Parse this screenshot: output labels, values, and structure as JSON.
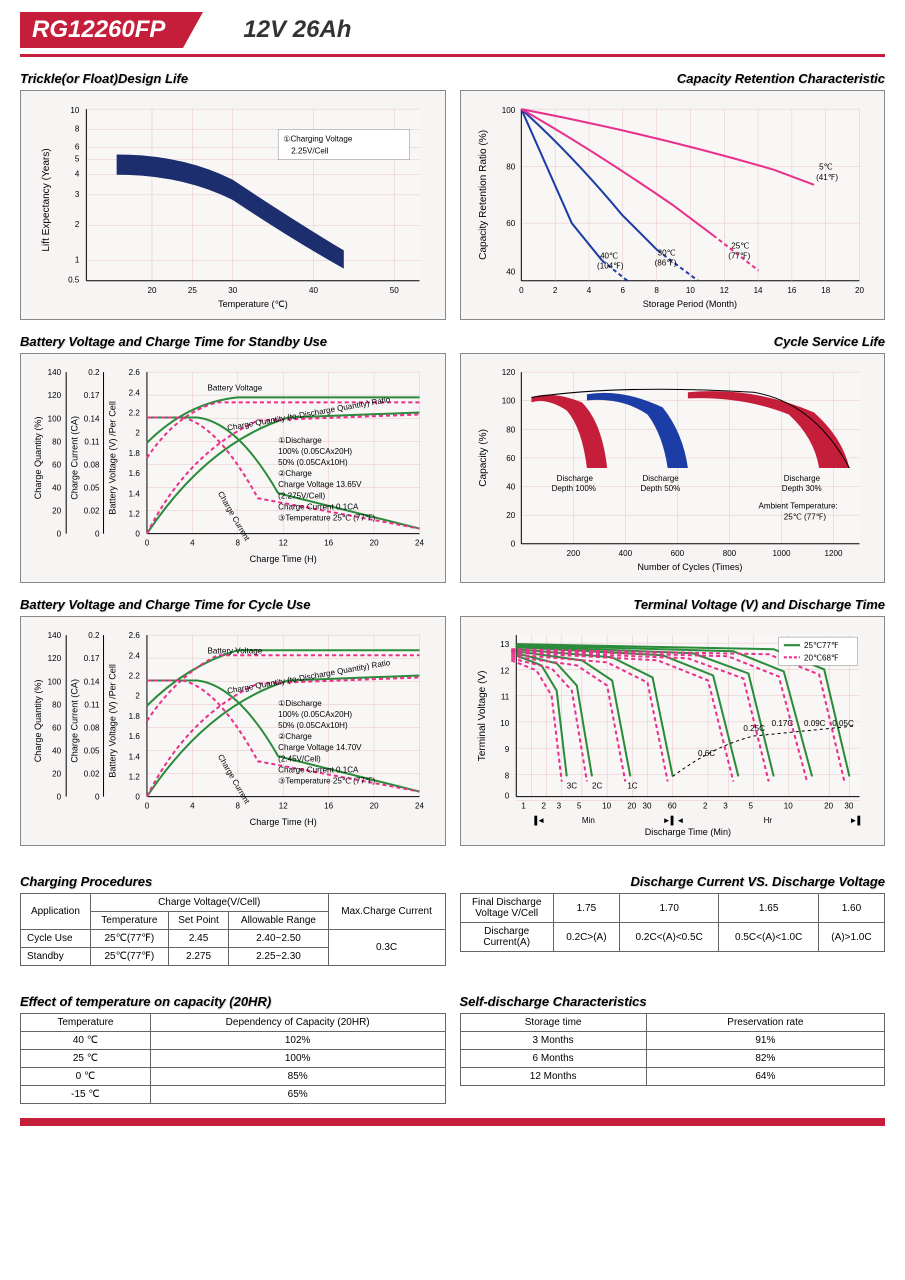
{
  "header": {
    "model": "RG12260FP",
    "spec": "12V  26Ah"
  },
  "charts": {
    "trickle": {
      "title": "Trickle(or Float)Design Life",
      "xlabel": "Temperature (℃)",
      "ylabel": "Lift  Expectancy (Years)",
      "xticks": [
        20,
        25,
        30,
        40,
        50
      ],
      "yticks": [
        0.5,
        1,
        2,
        3,
        4,
        5,
        6,
        8,
        10
      ],
      "legend": "①Charging Voltage 2.25V/Cell",
      "band_color": "#1c2e6e",
      "bg": "#f6f2f2",
      "grid": "#e8c5c5"
    },
    "retention": {
      "title": "Capacity Retention  Characteristic",
      "xlabel": "Storage Period (Month)",
      "ylabel": "Capacity Retention Ratio (%)",
      "xticks": [
        0,
        2,
        4,
        6,
        8,
        10,
        12,
        14,
        16,
        18,
        20
      ],
      "yticks": [
        40,
        60,
        80,
        100
      ],
      "curves": [
        {
          "label": "40℃\n(104℉)",
          "color": "#1c3da5",
          "dash": false,
          "pts": [
            [
              0,
              100
            ],
            [
              2,
              80
            ],
            [
              4,
              60
            ],
            [
              5,
              50
            ]
          ],
          "dash_ext": [
            [
              5,
              50
            ],
            [
              6.5,
              40
            ]
          ]
        },
        {
          "label": "30℃\n(86℉)",
          "color": "#1c3da5",
          "dash": false,
          "pts": [
            [
              0,
              100
            ],
            [
              3,
              82
            ],
            [
              6,
              63
            ],
            [
              8,
              52
            ]
          ],
          "dash_ext": [
            [
              8,
              52
            ],
            [
              10.5,
              40
            ]
          ]
        },
        {
          "label": "25℃\n(77℉)",
          "color": "#e8318c",
          "dash": false,
          "pts": [
            [
              0,
              100
            ],
            [
              4,
              86
            ],
            [
              8,
              70
            ],
            [
              11,
              58
            ]
          ],
          "dash_ext": [
            [
              11,
              58
            ],
            [
              14,
              44
            ]
          ]
        },
        {
          "label": "5℃\n(41℉)",
          "color": "#e8318c",
          "dash": false,
          "pts": [
            [
              0,
              100
            ],
            [
              6,
              92
            ],
            [
              12,
              82
            ],
            [
              17,
              74
            ]
          ],
          "dash_ext": []
        }
      ],
      "bg": "#f6f2f2",
      "grid": "#e8c5c5"
    },
    "standby": {
      "title": "Battery Voltage and Charge Time for Standby Use",
      "xlabel": "Charge Time (H)",
      "y1label": "Charge Quantity (%)",
      "y2label": "Charge Current (CA)",
      "y3label": "Battery Voltage (V) /Per Cell",
      "xticks": [
        0,
        4,
        8,
        12,
        16,
        20,
        24
      ],
      "y1ticks": [
        0,
        20,
        40,
        60,
        80,
        100,
        120,
        140
      ],
      "y2ticks": [
        0,
        0.02,
        0.05,
        0.08,
        0.11,
        0.14,
        0.17,
        0.2
      ],
      "y3ticks": [
        0,
        1.2,
        1.4,
        1.6,
        1.8,
        2.0,
        2.2,
        2.4,
        2.6
      ],
      "legend": [
        "①Discharge",
        "100% (0.05CAx20H)",
        "50% (0.05CAx10H)",
        "②Charge",
        "Charge Voltage 13.65V",
        "(2.275V/Cell)",
        "Charge Current 0.1CA",
        "③Temperature 25℃ (77℉)"
      ],
      "green": "#2a8c3a",
      "pink": "#e8318c"
    },
    "cycle_life": {
      "title": "Cycle Service Life",
      "xlabel": "Number of Cycles (Times)",
      "ylabel": "Capacity (%)",
      "xticks": [
        200,
        400,
        600,
        800,
        1000,
        1200
      ],
      "yticks": [
        0,
        20,
        40,
        60,
        80,
        100,
        120
      ],
      "bands": [
        {
          "label": "Discharge\nDepth 100%",
          "color": "#c41e3a",
          "x": [
            50,
            280
          ]
        },
        {
          "label": "Discharge\nDepth 50%",
          "color": "#1c3da5",
          "x": [
            300,
            560
          ]
        },
        {
          "label": "Discharge\nDepth 30%",
          "color": "#c41e3a",
          "x": [
            700,
            1200
          ]
        }
      ],
      "note": "Ambient Temperature:\n25℃ (77℉)"
    },
    "cycle_use": {
      "title": "Battery Voltage and Charge Time for Cycle Use",
      "xlabel": "Charge Time (H)",
      "legend": [
        "①Discharge",
        "100% (0.05CAx20H)",
        "50% (0.05CAx10H)",
        "②Charge",
        "Charge Voltage 14.70V",
        "(2.45V/Cell)",
        "Charge Current 0.1CA",
        "③Temperature 25℃ (77℉)"
      ]
    },
    "terminal": {
      "title": "Terminal Voltage (V) and Discharge Time",
      "xlabel": "Discharge Time (Min)",
      "ylabel": "Terminal Voltage (V)",
      "yticks": [
        0,
        8,
        9,
        10,
        11,
        12,
        13
      ],
      "legend": [
        {
          "label": "25℃77℉",
          "color": "#2a8c3a"
        },
        {
          "label": "20℃68℉",
          "color": "#e8318c"
        }
      ],
      "rates": [
        "3C",
        "2C",
        "1C",
        "0.6C",
        "0.25C",
        "0.17C",
        "0.09C",
        "0.05C"
      ]
    }
  },
  "tables": {
    "charging": {
      "title": "Charging Procedures",
      "headers": {
        "app": "Application",
        "cv": "Charge Voltage(V/Cell)",
        "temp": "Temperature",
        "sp": "Set Point",
        "ar": "Allowable Range",
        "max": "Max.Charge Current"
      },
      "rows": [
        {
          "app": "Cycle Use",
          "temp": "25℃(77℉)",
          "sp": "2.45",
          "ar": "2.40~2.50"
        },
        {
          "app": "Standby",
          "temp": "25℃(77℉)",
          "sp": "2.275",
          "ar": "2.25~2.30"
        }
      ],
      "max_current": "0.3C"
    },
    "discharge_v": {
      "title": "Discharge Current VS. Discharge Voltage",
      "r1": {
        "label": "Final Discharge Voltage V/Cell",
        "vals": [
          "1.75",
          "1.70",
          "1.65",
          "1.60"
        ]
      },
      "r2": {
        "label": "Discharge Current(A)",
        "vals": [
          "0.2C>(A)",
          "0.2C<(A)<0.5C",
          "0.5C<(A)<1.0C",
          "(A)>1.0C"
        ]
      }
    },
    "temp_capacity": {
      "title": "Effect of temperature on capacity (20HR)",
      "headers": [
        "Temperature",
        "Dependency of Capacity (20HR)"
      ],
      "rows": [
        [
          "40 ℃",
          "102%"
        ],
        [
          "25 ℃",
          "100%"
        ],
        [
          "0 ℃",
          "85%"
        ],
        [
          "-15 ℃",
          "65%"
        ]
      ]
    },
    "self_discharge": {
      "title": "Self-discharge Characteristics",
      "headers": [
        "Storage time",
        "Preservation rate"
      ],
      "rows": [
        [
          "3 Months",
          "91%"
        ],
        [
          "6 Months",
          "82%"
        ],
        [
          "12 Months",
          "64%"
        ]
      ]
    }
  }
}
